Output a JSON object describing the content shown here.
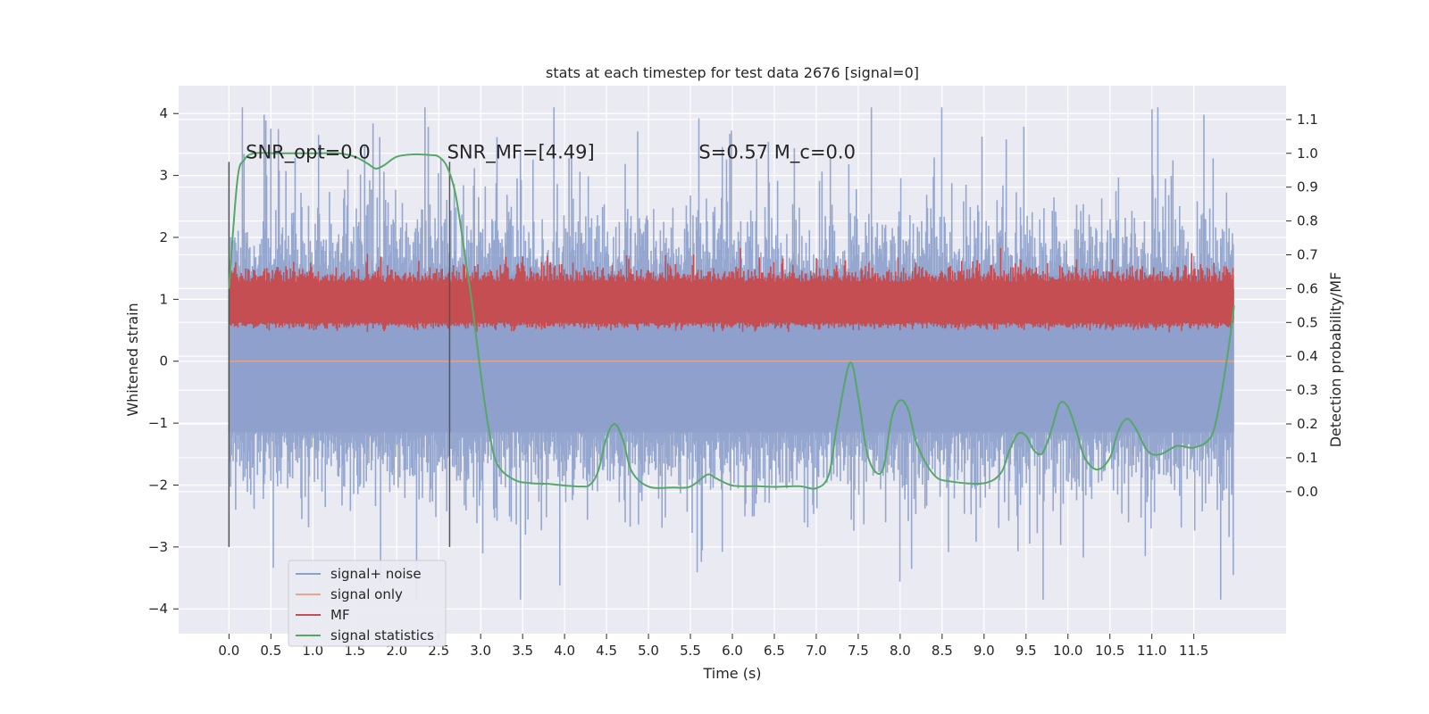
{
  "chart_data": {
    "type": "line",
    "title": "stats at each timestep for test data 2676 [signal=0]",
    "xlabel": "Time (s)",
    "ylabel_left": "Whitened strain",
    "ylabel_right": "Detection probability/MF",
    "xlim": [
      -0.6,
      12.6
    ],
    "ylim_left": [
      -4.4,
      4.45
    ],
    "ylim_right": [
      -0.42,
      1.2
    ],
    "x_ticks": [
      0.0,
      0.5,
      1.0,
      1.5,
      2.0,
      2.5,
      3.0,
      3.5,
      4.0,
      4.5,
      5.0,
      5.5,
      6.0,
      6.5,
      7.0,
      7.5,
      8.0,
      8.5,
      9.0,
      9.5,
      10.0,
      10.5,
      11.0,
      11.5
    ],
    "x_tick_labels": [
      "0.0",
      "0.5",
      "1.0",
      "1.5",
      "2.0",
      "2.5",
      "3.0",
      "3.5",
      "4.0",
      "4.5",
      "5.0",
      "5.5",
      "6.0",
      "6.5",
      "7.0",
      "7.5",
      "8.0",
      "8.5",
      "9.0",
      "9.5",
      "10.0",
      "10.5",
      "11.0",
      "11.5"
    ],
    "y_left_ticks": [
      -4,
      -3,
      -2,
      -1,
      0,
      1,
      2,
      3,
      4
    ],
    "y_left_tick_labels": [
      "−4",
      "−3",
      "−2",
      "−1",
      "0",
      "1",
      "2",
      "3",
      "4"
    ],
    "y_right_ticks": [
      0.0,
      0.1,
      0.2,
      0.3,
      0.4,
      0.5,
      0.6,
      0.7,
      0.8,
      0.9,
      1.0,
      1.1
    ],
    "y_right_tick_labels": [
      "0.0",
      "0.1",
      "0.2",
      "0.3",
      "0.4",
      "0.5",
      "0.6",
      "0.7",
      "0.8",
      "0.9",
      "1.0",
      "1.1"
    ],
    "grid": true,
    "legend_position": "bottom-left",
    "annotations": [
      {
        "text": "SNR_opt=0.0",
        "x": 0.2,
        "y": 3.22
      },
      {
        "text": "SNR_MF=[4.49]",
        "x": 2.6,
        "y": 3.22
      },
      {
        "text": "S=0.57   M_c=0.0",
        "x": 5.6,
        "y": 3.22
      }
    ],
    "vertical_markers": [
      {
        "x": 0.0,
        "y_range": [
          -3.0,
          3.22
        ]
      },
      {
        "x": 2.63,
        "y_range": [
          -3.0,
          3.22
        ]
      }
    ],
    "series": [
      {
        "name": "signal+ noise",
        "axis": "left",
        "color": "#8da0cb",
        "style": "dense noise, roughly ±1.3 sigma band with spikes up to ~4.1 and down to ~-3.85",
        "x_range": [
          0.0,
          11.98
        ],
        "band_core": [
          -1.15,
          1.38
        ],
        "extremes": [
          -3.85,
          4.1
        ]
      },
      {
        "name": "signal only",
        "axis": "left",
        "color": "#e9a68b",
        "x_range": [
          0.0,
          11.98
        ],
        "values_constant": 0.0
      },
      {
        "name": "MF",
        "axis": "right",
        "color": "#c44e52",
        "x_range": [
          0.0,
          11.98
        ],
        "band": [
          0.5,
          0.62
        ],
        "peaks": [
          0.72
        ]
      },
      {
        "name": "signal statistics",
        "axis": "right",
        "color": "#55a868",
        "x": [
          0.0,
          0.1,
          0.18,
          0.3,
          0.6,
          1.0,
          1.3,
          1.5,
          1.65,
          1.75,
          1.85,
          2.0,
          2.2,
          2.4,
          2.5,
          2.6,
          2.7,
          2.8,
          2.9,
          3.0,
          3.1,
          3.2,
          3.4,
          3.6,
          3.8,
          4.0,
          4.2,
          4.3,
          4.4,
          4.5,
          4.6,
          4.7,
          4.8,
          5.0,
          5.3,
          5.5,
          5.7,
          5.8,
          6.0,
          6.3,
          6.5,
          6.8,
          7.0,
          7.15,
          7.25,
          7.4,
          7.5,
          7.6,
          7.7,
          7.8,
          7.9,
          8.0,
          8.1,
          8.2,
          8.4,
          8.6,
          9.0,
          9.2,
          9.3,
          9.4,
          9.5,
          9.6,
          9.7,
          9.8,
          9.9,
          10.0,
          10.1,
          10.2,
          10.35,
          10.5,
          10.6,
          10.7,
          10.8,
          10.95,
          11.1,
          11.3,
          11.5,
          11.7,
          11.8,
          11.9,
          11.98
        ],
        "values": [
          0.6,
          0.92,
          0.98,
          1.0,
          1.0,
          1.0,
          1.0,
          0.99,
          0.97,
          0.955,
          0.965,
          0.99,
          0.997,
          0.995,
          0.99,
          0.96,
          0.88,
          0.72,
          0.55,
          0.35,
          0.18,
          0.08,
          0.035,
          0.025,
          0.023,
          0.018,
          0.015,
          0.02,
          0.06,
          0.16,
          0.2,
          0.15,
          0.06,
          0.015,
          0.012,
          0.015,
          0.05,
          0.04,
          0.018,
          0.016,
          0.014,
          0.016,
          0.01,
          0.05,
          0.2,
          0.38,
          0.28,
          0.12,
          0.06,
          0.07,
          0.22,
          0.27,
          0.24,
          0.14,
          0.05,
          0.03,
          0.025,
          0.055,
          0.12,
          0.17,
          0.165,
          0.12,
          0.115,
          0.18,
          0.26,
          0.25,
          0.18,
          0.1,
          0.065,
          0.1,
          0.18,
          0.215,
          0.19,
          0.12,
          0.11,
          0.135,
          0.13,
          0.16,
          0.25,
          0.4,
          0.55
        ]
      }
    ]
  }
}
